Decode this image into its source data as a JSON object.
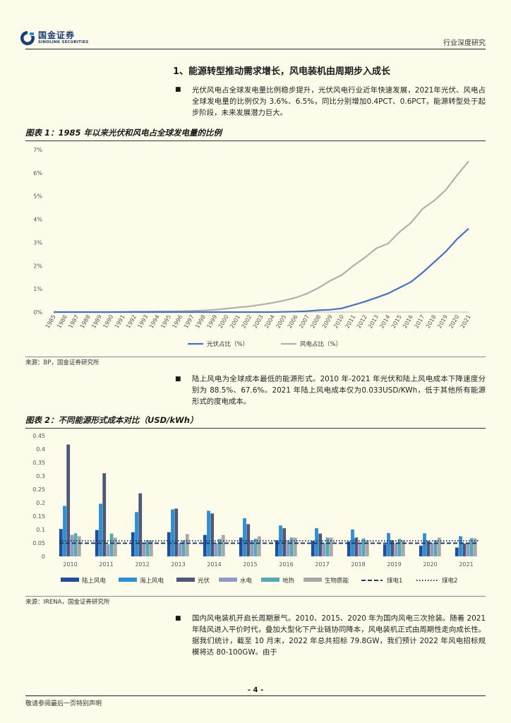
{
  "header": {
    "brand_cn": "国金证券",
    "brand_en": "SINOLINK SECURITIES",
    "report_type": "行业深度研究"
  },
  "section_title": "1、能源转型推动需求增长，风电装机由周期步入成长",
  "paragraphs": [
    "光伏风电占全球发电量比例稳步提升，光伏风电行业近年快速发展，2021年光伏、风电占全球发电量的比例仅为 3.6%、6.5%，同比分别增加0.4PCT、0.6PCT，能源转型处于起步阶段，未来发展潜力巨大。",
    "陆上风电为全球成本最低的能源形式。2010 年-2021 年光伏和陆上风电成本下降速度分别为 88.5%、67.6%。2021 年陆上风电成本仅为0.033USD/KWh，低于其他所有能源形式的度电成本。",
    "国内风电装机开启长周期景气。2010、2015、2020 年为国内风电三次抢装。随着 2021 年陆风进入平价时代，叠加大型化下产业链协同降本，风电装机正式由周期性走向成长性。据我们统计，截至 10 月末，2022 年总共招标 79.8GW，我们预计 2022 年风电招标规模将达 80-100GW。由于"
  ],
  "figure1": {
    "title": "图表 1：1985 年以来光伏和风电占全球发电量的比例",
    "source": "来源：BP，国金证券研究所"
  },
  "figure2": {
    "title": "图表 2：不同能源形式成本对比（USD/kWh）",
    "source": "来源：IRENA，国金证券研究所"
  },
  "chart_data": [
    {
      "type": "line",
      "title": "1985 年以来光伏和风电占全球发电量的比例",
      "x": [
        "1985",
        "1986",
        "1987",
        "1988",
        "1989",
        "1990",
        "1991",
        "1992",
        "1993",
        "1994",
        "1995",
        "1996",
        "1997",
        "1998",
        "1999",
        "2000",
        "2001",
        "2002",
        "2003",
        "2004",
        "2005",
        "2006",
        "2007",
        "2008",
        "2009",
        "2010",
        "2011",
        "2012",
        "2013",
        "2014",
        "2015",
        "2016",
        "2017",
        "2018",
        "2019",
        "2020",
        "2021"
      ],
      "yticks": [
        "0%",
        "1%",
        "2%",
        "3%",
        "4%",
        "5%",
        "6%",
        "7%"
      ],
      "ylim": [
        0,
        7
      ],
      "series": [
        {
          "name": "光伏占比（%）",
          "color": "#4472c4",
          "values": [
            0,
            0,
            0,
            0,
            0,
            0,
            0,
            0,
            0,
            0,
            0,
            0,
            0,
            0,
            0,
            0,
            0,
            0,
            0,
            0,
            0.01,
            0.02,
            0.04,
            0.08,
            0.1,
            0.16,
            0.3,
            0.45,
            0.62,
            0.8,
            1.05,
            1.3,
            1.7,
            2.15,
            2.6,
            3.15,
            3.6
          ]
        },
        {
          "name": "风电占比（%）",
          "color": "#b0b0b0",
          "values": [
            0,
            0,
            0,
            0,
            0,
            0,
            0.01,
            0.02,
            0.02,
            0.03,
            0.03,
            0.04,
            0.05,
            0.07,
            0.1,
            0.15,
            0.2,
            0.25,
            0.32,
            0.4,
            0.5,
            0.62,
            0.8,
            1.05,
            1.35,
            1.6,
            2.0,
            2.35,
            2.75,
            2.95,
            3.45,
            3.85,
            4.45,
            4.8,
            5.25,
            5.9,
            6.5
          ]
        }
      ]
    },
    {
      "type": "bar",
      "title": "不同能源形式成本对比（USD/kWh）",
      "categories": [
        "2010",
        "2011",
        "2012",
        "2013",
        "2014",
        "2015",
        "2016",
        "2017",
        "2018",
        "2019",
        "2020",
        "2021"
      ],
      "yticks": [
        "0",
        "0.05",
        "0.1",
        "0.15",
        "0.2",
        "0.25",
        "0.3",
        "0.35",
        "0.4",
        "0.45"
      ],
      "ylim": [
        0,
        0.45
      ],
      "series": [
        {
          "name": "陆上风电",
          "color": "#1f4e9b",
          "values": [
            0.102,
            0.098,
            0.09,
            0.09,
            0.08,
            0.07,
            0.06,
            0.058,
            0.055,
            0.045,
            0.04,
            0.033
          ]
        },
        {
          "name": "海上风电",
          "color": "#2b8fd6",
          "values": [
            0.188,
            0.196,
            0.165,
            0.175,
            0.17,
            0.142,
            0.115,
            0.105,
            0.1,
            0.087,
            0.086,
            0.075
          ]
        },
        {
          "name": "光伏",
          "color": "#4c5a78",
          "values": [
            0.417,
            0.31,
            0.235,
            0.178,
            0.16,
            0.12,
            0.105,
            0.085,
            0.07,
            0.06,
            0.057,
            0.048
          ]
        },
        {
          "name": "水电",
          "color": "#8e9bc4",
          "values": [
            0.08,
            0.045,
            0.05,
            0.05,
            0.05,
            0.06,
            0.06,
            0.05,
            0.05,
            0.05,
            0.05,
            0.05
          ]
        },
        {
          "name": "地热",
          "color": "#58a8b4",
          "values": [
            0.086,
            0.085,
            0.06,
            0.06,
            0.065,
            0.066,
            0.07,
            0.07,
            0.067,
            0.065,
            0.06,
            0.068
          ]
        },
        {
          "name": "生物质能",
          "color": "#a9a9a9",
          "values": [
            0.075,
            0.07,
            0.06,
            0.083,
            0.08,
            0.075,
            0.07,
            0.07,
            0.06,
            0.06,
            0.07,
            0.067
          ]
        }
      ],
      "reference_lines": [
        {
          "name": "煤电1",
          "value": 0.049,
          "style": "dashed"
        },
        {
          "name": "煤电2",
          "value": 0.058,
          "style": "dotted"
        }
      ]
    }
  ],
  "footer": {
    "page": "- 4 -",
    "note": "敬请参阅最后一页特别声明"
  }
}
